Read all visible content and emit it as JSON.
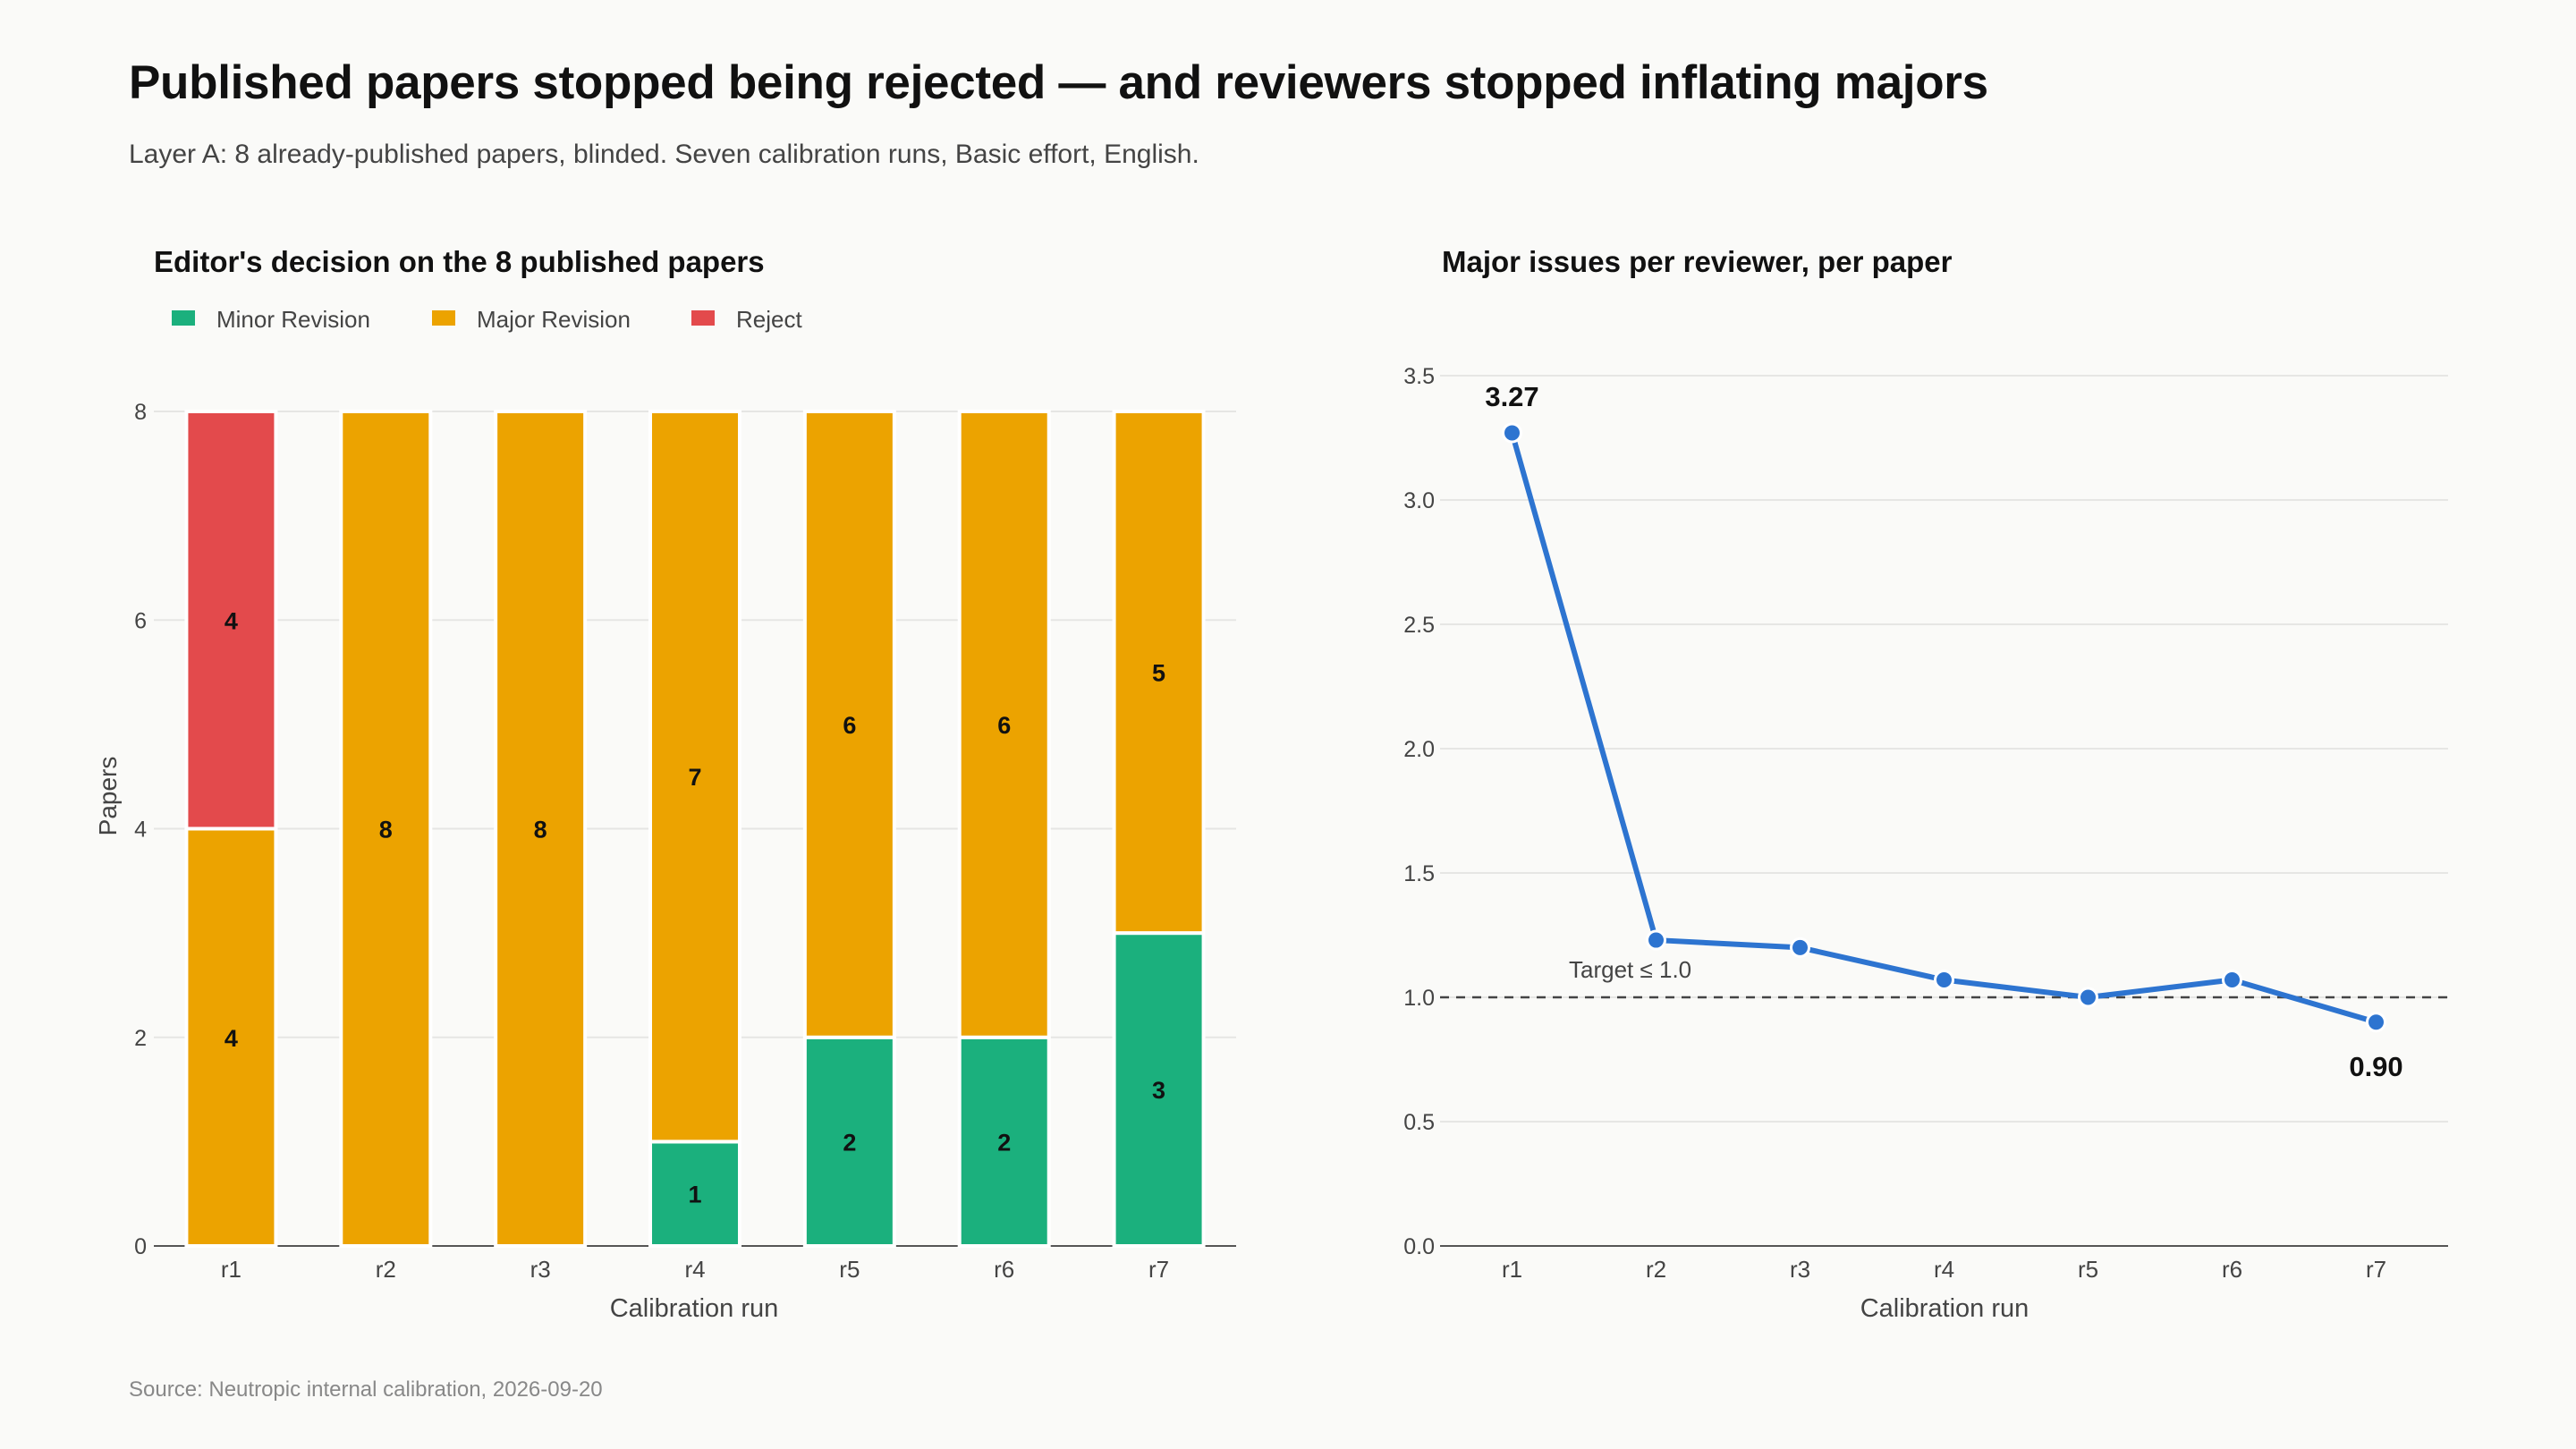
{
  "header": {
    "title": "Published papers stopped being rejected — and reviewers stopped inflating majors",
    "subtitle": "Layer A: 8 already-published papers, blinded. Seven calibration runs, Basic effort, English."
  },
  "footer": {
    "source": "Source: Neutropic internal calibration, 2026-09-20"
  },
  "chart_data": [
    {
      "type": "bar",
      "stacked": true,
      "title": "Editor's decision on the 8 published papers",
      "xlabel": "Calibration run",
      "ylabel": "Papers",
      "categories": [
        "r1",
        "r2",
        "r3",
        "r4",
        "r5",
        "r6",
        "r7"
      ],
      "series": [
        {
          "name": "Minor Revision",
          "color": "#1bb07d",
          "values": [
            0,
            0,
            0,
            1,
            2,
            2,
            3
          ]
        },
        {
          "name": "Major Revision",
          "color": "#eca300",
          "values": [
            4,
            8,
            8,
            7,
            6,
            6,
            5
          ]
        },
        {
          "name": "Reject",
          "color": "#e34a4c",
          "values": [
            4,
            0,
            0,
            0,
            0,
            0,
            0
          ]
        }
      ],
      "ylim": [
        0,
        8
      ],
      "yticks": [
        0,
        2,
        4,
        6,
        8
      ],
      "grid": true,
      "legend": "top-left"
    },
    {
      "type": "line",
      "title": "Major issues per reviewer, per paper",
      "xlabel": "Calibration run",
      "ylabel": "",
      "categories": [
        "r1",
        "r2",
        "r3",
        "r4",
        "r5",
        "r6",
        "r7"
      ],
      "series": [
        {
          "color": "#2d74d0",
          "values": [
            3.27,
            1.23,
            1.2,
            1.07,
            1.0,
            1.07,
            0.9
          ]
        }
      ],
      "ylim": [
        0,
        3.5
      ],
      "yticks": [
        "0.0",
        "0.5",
        "1.0",
        "1.5",
        "2.0",
        "2.5",
        "3.0",
        "3.5"
      ],
      "grid": true,
      "reference_line": {
        "y": 1.0,
        "label": "Target ≤ 1.0",
        "style": "dashed"
      },
      "annotations": [
        {
          "category": "r1",
          "text": "3.27",
          "position": "above"
        },
        {
          "category": "r7",
          "text": "0.90",
          "position": "below"
        }
      ]
    }
  ]
}
